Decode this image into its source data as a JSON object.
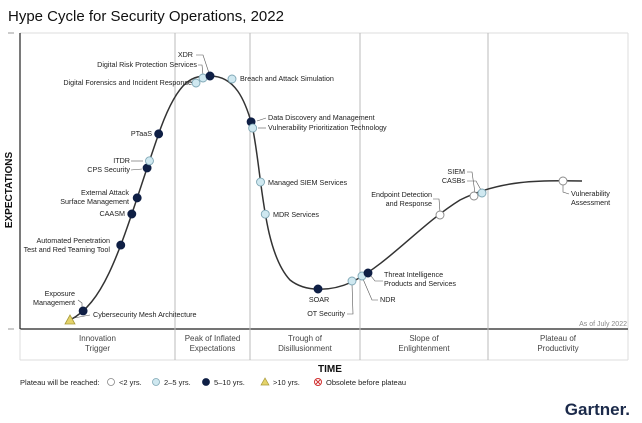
{
  "chart_data": {
    "type": "hype-cycle",
    "title": "Hype Cycle for Security Operations, 2022",
    "xlabel": "TIME",
    "ylabel": "EXPECTATIONS",
    "as_of": "As of July 2022",
    "phases": [
      {
        "name": "Innovation Trigger",
        "lines": [
          "Innovation",
          "Trigger"
        ]
      },
      {
        "name": "Peak of Inflated Expectations",
        "lines": [
          "Peak of Inflated",
          "Expectations"
        ]
      },
      {
        "name": "Trough of Disillusionment",
        "lines": [
          "Trough of",
          "Disillusionment"
        ]
      },
      {
        "name": "Slope of Enlightenment",
        "lines": [
          "Slope of",
          "Enlightenment"
        ]
      },
      {
        "name": "Plateau of Productivity",
        "lines": [
          "Plateau of",
          "Productivity"
        ]
      }
    ],
    "technologies": [
      {
        "name": "Cybersecurity Mesh Architecture",
        "lines": [
          "Cybersecurity Mesh Architecture"
        ],
        "phase": "Innovation Trigger",
        "position": 0.03,
        "plateau": ">10 yrs."
      },
      {
        "name": "Exposure Management",
        "lines": [
          "Exposure",
          "Management"
        ],
        "phase": "Innovation Trigger",
        "position": 0.06,
        "plateau": "5-10 yrs."
      },
      {
        "name": "Automated Penetration Test and Red Teaming Tool",
        "lines": [
          "Automated Penetration",
          "Test and Red Teaming Tool"
        ],
        "phase": "Innovation Trigger",
        "position": 0.32,
        "plateau": "5-10 yrs."
      },
      {
        "name": "CAASM",
        "lines": [
          "CAASM"
        ],
        "phase": "Innovation Trigger",
        "position": 0.44,
        "plateau": "5-10 yrs."
      },
      {
        "name": "External Attack Surface Management",
        "lines": [
          "External Attack",
          "Surface Management"
        ],
        "phase": "Innovation Trigger",
        "position": 0.5,
        "plateau": "5-10 yrs."
      },
      {
        "name": "CPS Security",
        "lines": [
          "CPS Security"
        ],
        "phase": "Innovation Trigger",
        "position": 0.6,
        "plateau": "5-10 yrs."
      },
      {
        "name": "ITDR",
        "lines": [
          "ITDR"
        ],
        "phase": "Innovation Trigger",
        "position": 0.63,
        "plateau": "2-5 yrs."
      },
      {
        "name": "PTaaS",
        "lines": [
          "PTaaS"
        ],
        "phase": "Innovation Trigger",
        "position": 0.74,
        "plateau": "5-10 yrs."
      },
      {
        "name": "Digital Forensics and Incident Response",
        "lines": [
          "Digital Forensics and Incident Response"
        ],
        "phase": "Peak of Inflated Expectations",
        "position": 0.2,
        "plateau": "2-5 yrs."
      },
      {
        "name": "Digital Risk Protection Services",
        "lines": [
          "Digital Risk Protection Services"
        ],
        "phase": "Peak of Inflated Expectations",
        "position": 0.4,
        "plateau": "2-5 yrs."
      },
      {
        "name": "XDR",
        "lines": [
          "XDR"
        ],
        "phase": "Peak of Inflated Expectations",
        "position": 0.5,
        "plateau": "5-10 yrs."
      },
      {
        "name": "Breach and Attack Simulation",
        "lines": [
          "Breach and Attack Simulation"
        ],
        "phase": "Peak of Inflated Expectations",
        "position": 0.8,
        "plateau": "2-5 yrs."
      },
      {
        "name": "Data Discovery and Management",
        "lines": [
          "Data Discovery and Management"
        ],
        "phase": "Trough of Disillusionment",
        "position": 0.02,
        "plateau": "5-10 yrs."
      },
      {
        "name": "Vulnerability Prioritization Technology",
        "lines": [
          "Vulnerability Prioritization Technology"
        ],
        "phase": "Trough of Disillusionment",
        "position": 0.04,
        "plateau": "2-5 yrs."
      },
      {
        "name": "Managed SIEM Services",
        "lines": [
          "Managed SIEM Services"
        ],
        "phase": "Trough of Disillusionment",
        "position": 0.13,
        "plateau": "2-5 yrs."
      },
      {
        "name": "MDR Services",
        "lines": [
          "MDR Services"
        ],
        "phase": "Trough of Disillusionment",
        "position": 0.2,
        "plateau": "2-5 yrs."
      },
      {
        "name": "SOAR",
        "lines": [
          "SOAR"
        ],
        "phase": "Trough of Disillusionment",
        "position": 0.65,
        "plateau": "5-10 yrs."
      },
      {
        "name": "OT Security",
        "lines": [
          "OT Security"
        ],
        "phase": "Trough of Disillusionment",
        "position": 0.95,
        "plateau": "2-5 yrs."
      },
      {
        "name": "NDR",
        "lines": [
          "NDR"
        ],
        "phase": "Slope of Enlightenment",
        "position": 0.02,
        "plateau": "2-5 yrs."
      },
      {
        "name": "Threat Intelligence Products and Services",
        "lines": [
          "Threat Intelligence",
          "Products and Services"
        ],
        "phase": "Slope of Enlightenment",
        "position": 0.1,
        "plateau": "5-10 yrs."
      },
      {
        "name": "Endpoint Detection and Response",
        "lines": [
          "Endpoint Detection",
          "and Response"
        ],
        "phase": "Slope of Enlightenment",
        "position": 0.64,
        "plateau": "<2 yrs."
      },
      {
        "name": "SIEM",
        "lines": [
          "SIEM"
        ],
        "phase": "Slope of Enlightenment",
        "position": 0.87,
        "plateau": "<2 yrs."
      },
      {
        "name": "CASBs",
        "lines": [
          "CASBs"
        ],
        "phase": "Slope of Enlightenment",
        "position": 0.93,
        "plateau": "2-5 yrs."
      },
      {
        "name": "Vulnerability Assessment",
        "lines": [
          "Vulnerability",
          "Assessment"
        ],
        "phase": "Plateau of Productivity",
        "position": 0.55,
        "plateau": "<2 yrs."
      }
    ],
    "legend": {
      "title": "Plateau will be reached:",
      "placement": "bottom-left",
      "items": [
        {
          "key": "<2 yrs.",
          "label": "<2 yrs.",
          "symbol": "circle-white"
        },
        {
          "key": "2-5 yrs.",
          "label": "2–5 yrs.",
          "symbol": "circle-lightblue"
        },
        {
          "key": "5-10 yrs.",
          "label": "5–10 yrs.",
          "symbol": "circle-navy"
        },
        {
          "key": ">10 yrs.",
          "label": ">10 yrs.",
          "symbol": "triangle-yellow"
        },
        {
          "key": "obsolete",
          "label": "Obsolete before plateau",
          "symbol": "circle-x-red"
        }
      ]
    },
    "colors": {
      "<2 yrs.": "#ffffff",
      "2-5 yrs.": "#cfe8f0",
      "5-10 yrs.": "#0f1f45",
      ">10 yrs.": "#e4d36a",
      "obsolete": "#d03030",
      "curve": "#333333"
    }
  },
  "brand": "Gartner."
}
